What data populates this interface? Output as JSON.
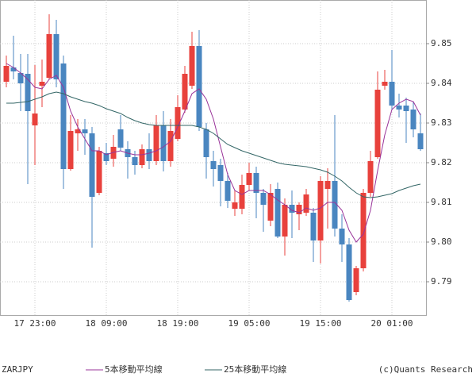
{
  "chart_data": {
    "type": "candlestick",
    "symbol": "ZARJPY",
    "credit": "(c)Quants Research",
    "categories": [
      null,
      null,
      null,
      null,
      "17 23:00",
      null,
      null,
      null,
      null,
      null,
      null,
      null,
      null,
      null,
      "18 09:00",
      null,
      null,
      null,
      null,
      null,
      null,
      null,
      null,
      null,
      "18 19:00",
      null,
      null,
      null,
      null,
      null,
      null,
      null,
      null,
      null,
      "19 05:00",
      null,
      null,
      null,
      null,
      null,
      null,
      null,
      null,
      null,
      "19 15:00",
      null,
      null,
      null,
      null,
      null,
      null,
      null,
      null,
      null,
      "20 01:00",
      null,
      null,
      null,
      null
    ],
    "open": [
      9.8404,
      9.844,
      9.8426,
      9.8424,
      9.8294,
      9.8394,
      9.8414,
      9.8524,
      9.845,
      9.8184,
      9.8274,
      9.8284,
      9.8274,
      9.8124,
      9.8224,
      9.821,
      9.8284,
      9.8234,
      9.8214,
      9.8194,
      9.8234,
      9.8204,
      9.8294,
      9.8204,
      9.826,
      9.8334,
      9.8394,
      9.8494,
      9.8284,
      9.8204,
      9.8194,
      9.8154,
      9.8084,
      9.8084,
      9.8144,
      9.8174,
      9.8124,
      9.8054,
      9.8134,
      9.8014,
      9.8094,
      9.807,
      9.8074,
      9.8074,
      9.8004,
      9.8134,
      9.8154,
      9.8034,
      9.7994,
      9.7874,
      9.7934,
      9.8124,
      9.8214,
      9.8394,
      9.8404,
      9.8344,
      9.8344,
      9.8334,
      9.8274
    ],
    "high": [
      9.847,
      9.852,
      9.8474,
      9.8474,
      9.8446,
      9.846,
      9.8574,
      9.856,
      9.847,
      9.832,
      9.831,
      9.831,
      9.829,
      9.824,
      9.825,
      9.827,
      9.832,
      9.8254,
      9.823,
      9.8246,
      9.8274,
      9.832,
      9.833,
      9.831,
      9.837,
      9.8444,
      9.853,
      9.8534,
      9.83,
      9.823,
      9.821,
      9.8174,
      9.813,
      9.817,
      9.82,
      9.819,
      9.8134,
      9.8146,
      9.815,
      9.811,
      9.813,
      9.81,
      9.8134,
      9.8086,
      9.8166,
      9.8186,
      9.832,
      9.807,
      9.801,
      9.794,
      9.8134,
      9.823,
      9.843,
      9.8434,
      9.8484,
      9.8374,
      9.8364,
      9.8354,
      9.8324
    ],
    "low": [
      9.839,
      9.841,
      9.833,
      9.8146,
      9.8194,
      9.834,
      9.841,
      9.839,
      9.8134,
      9.818,
      9.823,
      9.822,
      9.7986,
      9.8118,
      9.8194,
      9.819,
      9.823,
      9.816,
      9.817,
      9.8186,
      9.8184,
      9.8194,
      9.8178,
      9.819,
      9.8254,
      9.8326,
      9.8386,
      9.828,
      9.816,
      9.814,
      9.809,
      9.8086,
      9.8066,
      9.807,
      9.813,
      9.806,
      9.8026,
      9.804,
      9.801,
      9.7966,
      9.801,
      9.803,
      9.8066,
      9.795,
      9.7946,
      9.8034,
      9.8014,
      9.795,
      9.785,
      9.7866,
      9.7926,
      9.8114,
      9.821,
      9.8384,
      9.8334,
      9.8314,
      9.825,
      9.8264,
      9.823
    ],
    "close": [
      9.8444,
      9.843,
      9.84,
      9.833,
      9.8324,
      9.8404,
      9.8524,
      9.841,
      9.8184,
      9.828,
      9.8284,
      9.8274,
      9.8114,
      9.823,
      9.8204,
      9.824,
      9.8238,
      9.8214,
      9.8194,
      9.8234,
      9.8204,
      9.8294,
      9.8204,
      9.828,
      9.834,
      9.8424,
      9.8494,
      9.829,
      9.8214,
      9.8184,
      9.8154,
      9.8104,
      9.81,
      9.8144,
      9.8174,
      9.8124,
      9.8094,
      9.8124,
      9.8014,
      9.8094,
      9.8074,
      9.8094,
      9.812,
      9.8004,
      9.8154,
      9.8154,
      9.8034,
      9.7994,
      9.7854,
      9.7934,
      9.8124,
      9.8204,
      9.8384,
      9.8404,
      9.8344,
      9.8334,
      9.833,
      9.8284,
      9.8234
    ],
    "up_color": "#e8413c",
    "down_color": "#4a86c0",
    "lines": [
      {
        "name": "5本移動平均線",
        "color": "#993399",
        "values": [
          9.845,
          9.844,
          9.8426,
          9.841,
          9.839,
          9.8386,
          9.841,
          9.842,
          9.839,
          9.833,
          9.829,
          9.826,
          9.823,
          9.823,
          9.822,
          9.8226,
          9.823,
          9.8224,
          9.822,
          9.822,
          9.8224,
          9.823,
          9.824,
          9.8254,
          9.829,
          9.833,
          9.8374,
          9.8386,
          9.836,
          9.831,
          9.824,
          9.817,
          9.813,
          9.812,
          9.813,
          9.813,
          9.813,
          9.812,
          9.8106,
          9.8094,
          9.808,
          9.8074,
          9.8086,
          9.808,
          9.8086,
          9.81,
          9.81,
          9.808,
          9.803,
          9.8,
          9.802,
          9.808,
          9.818,
          9.827,
          9.8334,
          9.835,
          9.836,
          9.8354,
          9.832
        ]
      },
      {
        "name": "25本移動平均線",
        "color": "#336666",
        "values": [
          9.835,
          9.835,
          9.8352,
          9.8354,
          9.836,
          9.8366,
          9.8374,
          9.8378,
          9.8374,
          9.8366,
          9.836,
          9.8354,
          9.835,
          9.8344,
          9.8336,
          9.833,
          9.8324,
          9.8314,
          9.8306,
          9.83,
          9.8296,
          9.8294,
          9.8294,
          9.8294,
          9.8294,
          9.8294,
          9.8294,
          9.829,
          9.8284,
          9.8274,
          9.826,
          9.8246,
          9.8238,
          9.823,
          9.8224,
          9.8218,
          9.8212,
          9.8206,
          9.82,
          9.8196,
          9.8194,
          9.8192,
          9.819,
          9.8186,
          9.8182,
          9.8176,
          9.8166,
          9.8154,
          9.8138,
          9.8124,
          9.8114,
          9.8112,
          9.8114,
          9.8118,
          9.8122,
          9.813,
          9.8136,
          9.8142,
          9.8146
        ]
      }
    ],
    "ylim": [
      9.7816,
      9.861
    ],
    "yticks": [
      9.79,
      {
        "value": 9.8,
        "label": "9.80"
      },
      9.81,
      9.82,
      9.83,
      9.84,
      9.85
    ],
    "grid": true
  }
}
